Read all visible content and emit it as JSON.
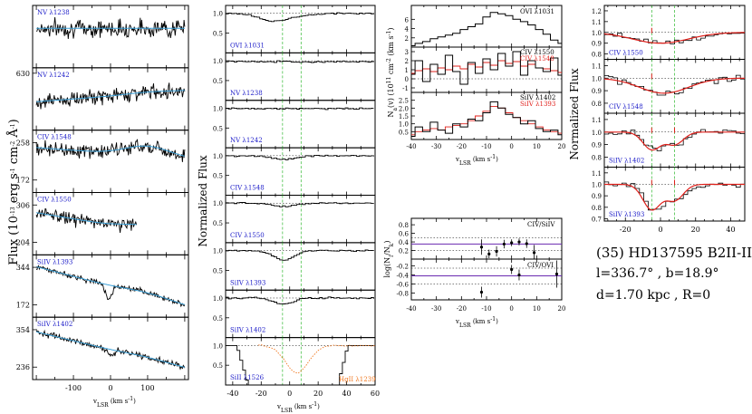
{
  "star": {
    "title": "(35) HD137595 B2II-III",
    "coords": "l=336.7°  , b=18.9°",
    "distance": "d=1.70 kpc  , R=0"
  },
  "colors": {
    "data": "#000000",
    "fit": "#3aa0d8",
    "model": "#e0201b",
    "label": "#1a1ac8",
    "green": "#2fb82f",
    "orange": "#f07820",
    "purple": "#6a2ab0"
  },
  "col1": {
    "ylabel": "Flux (10",
    "ylabel_exp": "-13",
    "ylabel_units": " erg s",
    "ylabel_units_exp": "-1",
    "ylabel_units2": " cm",
    "ylabel_units2_exp": "-2",
    "ylabel_units3": " Å",
    "ylabel_units3_exp": "-1",
    "ylabel_close": ")",
    "xlabel": "v",
    "xlabel_sub": "LSR",
    "xlabel_units": " (km s",
    "xlabel_units_exp": "-1",
    "xlabel_close": ")",
    "xticks": [
      "-100",
      "0",
      "100"
    ],
    "xrange": [
      -210,
      210
    ],
    "panels": [
      {
        "label": "NV λ1238",
        "ytick": [],
        "start": 0.35,
        "end": 0.35,
        "dip": 0,
        "noise": 0.16
      },
      {
        "label": "NV λ1242",
        "ytick": [
          "630"
        ],
        "start": 0.55,
        "end": 0.35,
        "dip": 0.05,
        "noise": 0.13
      },
      {
        "label": "CIV λ1548",
        "ytick": [
          "258",
          "172"
        ],
        "start": 0.25,
        "end": 0.45,
        "dip": 0.35,
        "noise": 0.13
      },
      {
        "label": "CIV λ1550",
        "ytick": [
          "306",
          "204"
        ],
        "start": 0.3,
        "end": 0.75,
        "dip": 0.2,
        "noise": 0.12,
        "xmax": 70
      },
      {
        "label": "SiIV λ1393",
        "ytick": [
          "344",
          "172"
        ],
        "start": 0.15,
        "end": 0.85,
        "dip": 0.1,
        "noise": 0.05
      },
      {
        "label": "SiIV λ1402",
        "ytick": [
          "354",
          "236"
        ],
        "start": 0.2,
        "end": 0.85,
        "dip": 0.05,
        "noise": 0.05
      }
    ]
  },
  "col2": {
    "ylabel": "Normalized Flux",
    "xlabel": "v",
    "xlabel_sub": "LSR",
    "xlabel_units": " (km s",
    "xlabel_units_exp": "-1",
    "xlabel_close": ")",
    "xticks": [
      "-40",
      "-20",
      "0",
      "20",
      "40",
      "60"
    ],
    "xrange": [
      -45,
      60
    ],
    "yticks": [
      "0.5",
      "1.0"
    ],
    "panels": [
      {
        "label": "OVI λ1031"
      },
      {
        "label": "NV λ1238"
      },
      {
        "label": "NV λ1242"
      },
      {
        "label": "CIV λ1548"
      },
      {
        "label": "CIV λ1550"
      },
      {
        "label": "SiIV λ1393"
      },
      {
        "label": "SiIV λ1402"
      },
      {
        "label": "SiII λ1526",
        "label2": "HgII λ1239"
      }
    ]
  },
  "col3": {
    "ylabel": "N",
    "ylabel_sub": "a",
    "ylabel_rest": "(v)  (10",
    "ylabel_exp": "11",
    "ylabel_units": " cm",
    "ylabel_units_exp": "-2",
    "ylabel_units2": " (km s",
    "ylabel_units2_exp": "-1",
    "ylabel_close": ")",
    "ratio_ylabel": "log(N",
    "ratio_ylabel_sub": "i",
    "ratio_ylabel_mid": "/N",
    "ratio_ylabel_sub2": "k",
    "ratio_ylabel_close": ")",
    "xlabel": "v",
    "xlabel_sub": "LSR",
    "xlabel_units": " (km s",
    "xlabel_units_exp": "-1",
    "xlabel_close": ")",
    "xticks": [
      "-40",
      "-30",
      "-20",
      "-10",
      "0",
      "10",
      "20"
    ],
    "xrange": [
      -40,
      20
    ],
    "panels": [
      {
        "label": "OVI λ1031",
        "yticks": [
          "2",
          "4",
          "6"
        ],
        "ylim": [
          0,
          9
        ]
      },
      {
        "label": "CIV λ1550",
        "label2": "CIV λ1548",
        "yticks": [
          "-1",
          "0",
          "1",
          "2",
          "3"
        ],
        "ylim": [
          -1.5,
          3.5
        ]
      },
      {
        "label": "SiIV λ1402",
        "label2": "SiIV λ1393",
        "yticks": [
          "0.5",
          "1.0",
          "1.5",
          "2.0",
          "2.5"
        ],
        "ylim": [
          0,
          3
        ]
      }
    ],
    "ratio_panels": [
      {
        "label": "CIV/SiIV",
        "yticks": [
          "0.2",
          "0.4",
          "0.6",
          "0.8"
        ],
        "ylim": [
          0,
          0.95
        ]
      },
      {
        "label": "CIV/OVI",
        "yticks": [
          "-0.8",
          "-0.6",
          "-0.4",
          "-0.2"
        ],
        "ylim": [
          -0.95,
          -0.05
        ]
      }
    ]
  },
  "col4": {
    "ylabel": "Normalized Flux",
    "xticks": [
      "-20",
      "0",
      "20",
      "40"
    ],
    "xrange": [
      -32,
      48
    ],
    "panels": [
      {
        "label": "CIV λ1550",
        "yticks": [
          "0.8",
          "0.9",
          "1.0",
          "1.1",
          "1.2"
        ],
        "ylim": [
          0.75,
          1.25
        ]
      },
      {
        "label": "CIV λ1548",
        "yticks": [
          "0.8",
          "0.9",
          "1.0",
          "1.1"
        ],
        "ylim": [
          0.72,
          1.15
        ]
      },
      {
        "label": "SiIV λ1402",
        "yticks": [
          "0.8",
          "0.9",
          "1.0",
          "1.1"
        ],
        "ylim": [
          0.72,
          1.15
        ]
      },
      {
        "label": "SiIV λ1393",
        "yticks": [
          "0.7",
          "0.8",
          "0.9",
          "1.0",
          "1.1"
        ],
        "ylim": [
          0.68,
          1.15
        ]
      }
    ]
  },
  "chart_data": [
    {
      "type": "line",
      "title": "",
      "xlabel": "vLSR (km s-1)",
      "ylabel": "Flux (10-13 erg s-1 cm-2 Å-1)",
      "series": [
        {
          "name": "NV λ1238"
        },
        {
          "name": "NV λ1242"
        },
        {
          "name": "CIV λ1548"
        },
        {
          "name": "CIV λ1550"
        },
        {
          "name": "SiIV λ1393"
        },
        {
          "name": "SiIV λ1402"
        }
      ],
      "xlim": [
        -210,
        210
      ]
    },
    {
      "type": "line",
      "ylabel": "Normalized Flux",
      "xlabel": "vLSR (km s-1)",
      "xlim": [
        -45,
        60
      ],
      "ylim": [
        0,
        1.2
      ],
      "series": [
        {
          "name": "OVI λ1031",
          "min_depth": 0.82,
          "min_at": -10
        },
        {
          "name": "NV λ1238",
          "min_depth": 0.97
        },
        {
          "name": "NV λ1242",
          "min_depth": 0.98
        },
        {
          "name": "CIV λ1548",
          "min_depth": 0.85,
          "min_at": -4
        },
        {
          "name": "CIV λ1550",
          "min_depth": 0.88
        },
        {
          "name": "SiIV λ1393",
          "min_depth": 0.7,
          "min_at": -4
        },
        {
          "name": "SiIV λ1402",
          "min_depth": 0.85
        },
        {
          "name": "SiII λ1526",
          "min_depth": 0.0
        },
        {
          "name": "HgII λ1239",
          "min_depth": 0.3
        }
      ]
    },
    {
      "type": "line",
      "ylabel": "Na(v) (10^11 cm-2 (km s-1))",
      "xlabel": "vLSR (km s-1)",
      "xlim": [
        -40,
        20
      ],
      "series": [
        {
          "name": "OVI λ1031",
          "x": [
            -40,
            -37,
            -34,
            -31,
            -28,
            -25,
            -22,
            -19,
            -16,
            -13,
            -10,
            -7,
            -4,
            -1,
            2,
            5,
            8,
            11,
            14,
            17,
            20
          ],
          "values": [
            0.3,
            0.8,
            1.2,
            1.8,
            2.2,
            2.6,
            3.0,
            3.8,
            4.4,
            5.0,
            6.5,
            7.5,
            7.2,
            6.8,
            6.0,
            5.5,
            4.8,
            3.8,
            2.8,
            1.5,
            0.8
          ]
        },
        {
          "name": "CIV λ1550",
          "x": [
            -40,
            -37,
            -34,
            -31,
            -28,
            -25,
            -22,
            -19,
            -16,
            -13,
            -10,
            -7,
            -4,
            -1,
            2,
            5,
            8,
            11,
            14,
            17,
            20
          ],
          "values": [
            0.5,
            2.0,
            -0.3,
            1.6,
            0.5,
            2.6,
            0.8,
            -0.6,
            1.8,
            0.6,
            2.2,
            1.0,
            2.8,
            1.4,
            3.0,
            0.4,
            2.0,
            1.2,
            0.8,
            2.3,
            0.4
          ]
        },
        {
          "name": "CIV λ1548",
          "x": [
            -40,
            -37,
            -34,
            -31,
            -28,
            -25,
            -22,
            -19,
            -16,
            -13,
            -10,
            -7,
            -4,
            -1,
            2,
            5,
            8,
            11,
            14,
            17,
            20
          ],
          "values": [
            0.6,
            0.9,
            1.1,
            0.8,
            1.2,
            1.0,
            1.4,
            1.1,
            1.6,
            1.3,
            1.8,
            1.5,
            2.0,
            1.7,
            1.9,
            1.4,
            1.6,
            1.2,
            1.1,
            0.9,
            0.7
          ]
        },
        {
          "name": "SiIV λ1402",
          "x": [
            -40,
            -37,
            -34,
            -31,
            -28,
            -25,
            -22,
            -19,
            -16,
            -13,
            -10,
            -7,
            -4,
            -1,
            2,
            5,
            8,
            11,
            14,
            17,
            20
          ],
          "values": [
            0.2,
            0.8,
            0.5,
            1.1,
            0.6,
            0.4,
            1.0,
            0.8,
            1.3,
            1.2,
            1.7,
            2.4,
            2.0,
            1.6,
            1.4,
            1.0,
            1.2,
            0.7,
            0.5,
            0.6,
            0.3
          ]
        },
        {
          "name": "SiIV λ1393",
          "x": [
            -40,
            -37,
            -34,
            -31,
            -28,
            -25,
            -22,
            -19,
            -16,
            -13,
            -10,
            -7,
            -4,
            -1,
            2,
            5,
            8,
            11,
            14,
            17,
            20
          ],
          "values": [
            0.3,
            0.5,
            0.6,
            0.7,
            0.6,
            0.8,
            0.9,
            1.0,
            1.2,
            1.5,
            1.8,
            2.1,
            2.0,
            1.7,
            1.4,
            1.2,
            1.0,
            0.8,
            0.6,
            0.5,
            0.4
          ]
        }
      ]
    },
    {
      "type": "scatter",
      "ylabel": "log(Ni/Nk)",
      "xlabel": "vLSR (km s-1)",
      "xlim": [
        -40,
        20
      ],
      "series": [
        {
          "name": "CIV/SiIV",
          "x": [
            -12,
            -9,
            -6,
            -3,
            0,
            3,
            6,
            9
          ],
          "values": [
            0.28,
            0.12,
            0.18,
            0.35,
            0.38,
            0.4,
            0.36,
            0.15
          ],
          "err": [
            0.18,
            0.1,
            0.12,
            0.1,
            0.08,
            0.08,
            0.1,
            0.18
          ],
          "line": 0.35,
          "band": [
            0.2,
            0.5
          ]
        },
        {
          "name": "CIV/OVI",
          "x": [
            -12,
            0,
            3,
            18
          ],
          "values": [
            -0.78,
            -0.28,
            -0.4,
            -0.38
          ],
          "err": [
            0.12,
            0.1,
            0.12,
            0.3
          ],
          "line": -0.42,
          "band": [
            -0.6,
            -0.25
          ]
        }
      ]
    },
    {
      "type": "line",
      "ylabel": "Normalized Flux",
      "xlim": [
        -32,
        48
      ],
      "series": [
        {
          "name": "CIV λ1550",
          "min_depth": 0.9,
          "min_at": 0
        },
        {
          "name": "CIV λ1548",
          "min_depth": 0.85,
          "min_at": 0
        },
        {
          "name": "SiIV λ1402",
          "min_depth": 0.8,
          "min_at": -5
        },
        {
          "name": "SiIV λ1393",
          "min_depth": 0.72,
          "min_at": -5
        }
      ]
    }
  ]
}
